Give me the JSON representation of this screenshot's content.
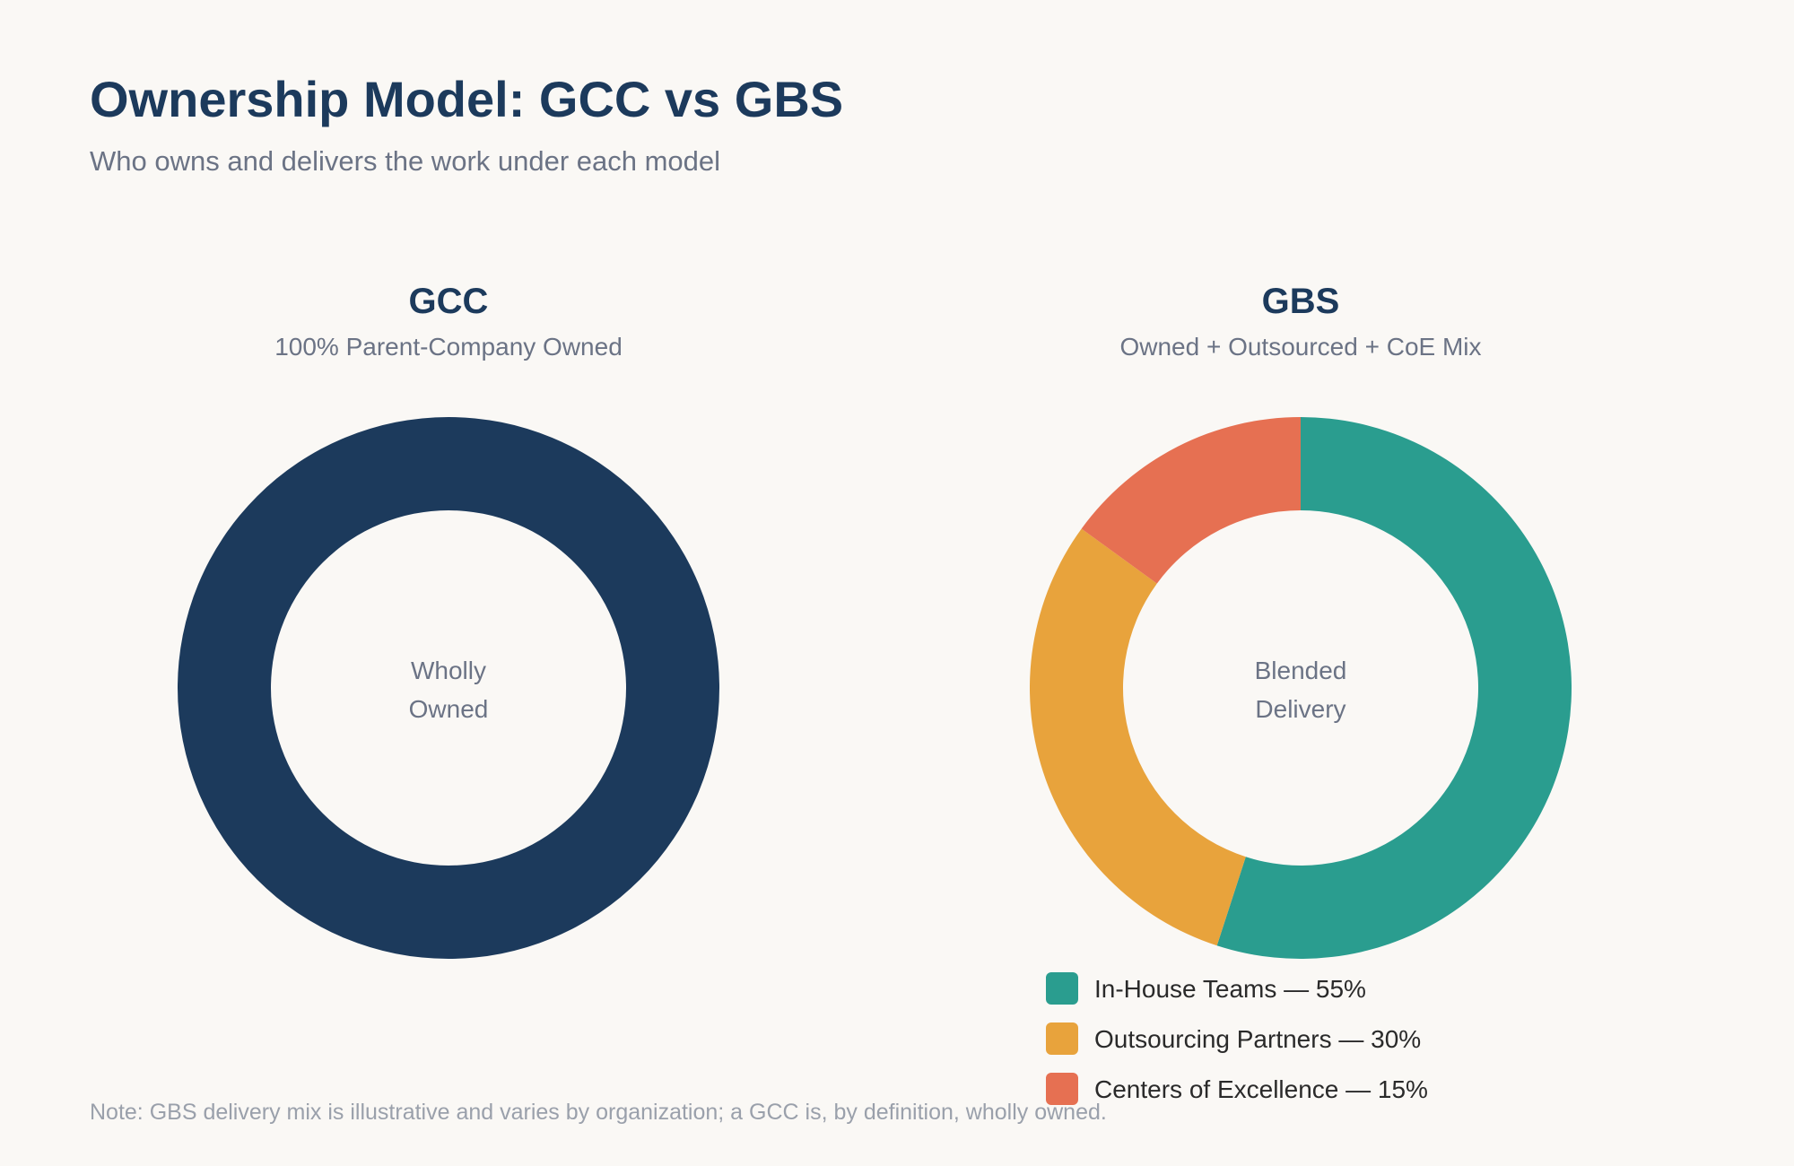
{
  "title": "Ownership Model: GCC vs GBS",
  "subtitle": "Who owns and delivers the work under each model",
  "footnote": "Note: GBS delivery mix is illustrative and varies by organization; a GCC is, by definition, wholly owned.",
  "chart_data": [
    {
      "type": "pie",
      "title": "GCC",
      "subtitle": "100% Parent-Company Owned",
      "center_label": [
        "Wholly",
        "Owned"
      ],
      "slices": [
        {
          "label": "Parent-Company Owned",
          "value": 100,
          "color": "#1c3a5c"
        }
      ],
      "legend": false
    },
    {
      "type": "pie",
      "title": "GBS",
      "subtitle": "Owned + Outsourced + CoE Mix",
      "center_label": [
        "Blended",
        "Delivery"
      ],
      "slices": [
        {
          "label": "In-House Teams",
          "value": 55,
          "color": "#2a9d8f",
          "legend_text": "In-House Teams — 55%"
        },
        {
          "label": "Outsourcing Partners",
          "value": 30,
          "color": "#e8a33c",
          "legend_text": "Outsourcing Partners — 30%"
        },
        {
          "label": "Centers of Excellence",
          "value": 15,
          "color": "#e67052",
          "legend_text": "Centers of Excellence — 15%"
        }
      ],
      "legend": true,
      "legend_position": "bottom"
    }
  ]
}
